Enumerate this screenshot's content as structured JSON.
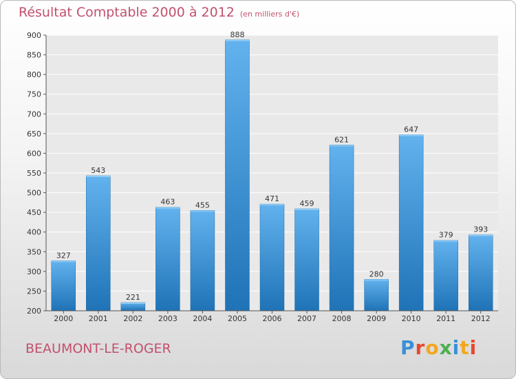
{
  "title": "Résultat Comptable 2000 à 2012",
  "subtitle": "(en milliers d'€)",
  "city": "BEAUMONT-LE-ROGER",
  "logo": {
    "text": "Proxiti",
    "colors": [
      "#3a8fd8",
      "#e8472e",
      "#f2a71f",
      "#4caf50",
      "#3a8fd8",
      "#f2a71f",
      "#e8472e"
    ]
  },
  "colors": {
    "title": "#c2506d",
    "bar_top": "#62b2ee",
    "bar_bottom": "#1f73b6"
  },
  "chart_data": {
    "type": "bar",
    "title": "Résultat Comptable 2000 à 2012",
    "xlabel": "",
    "ylabel": "",
    "categories": [
      "2000",
      "2001",
      "2002",
      "2003",
      "2004",
      "2005",
      "2006",
      "2007",
      "2008",
      "2009",
      "2010",
      "2011",
      "2012"
    ],
    "values": [
      327,
      543,
      221,
      463,
      455,
      888,
      471,
      459,
      621,
      280,
      647,
      379,
      393
    ],
    "ylim": [
      200,
      900
    ],
    "yticks": [
      200,
      250,
      300,
      350,
      400,
      450,
      500,
      550,
      600,
      650,
      700,
      750,
      800,
      850,
      900
    ],
    "grid": true
  }
}
